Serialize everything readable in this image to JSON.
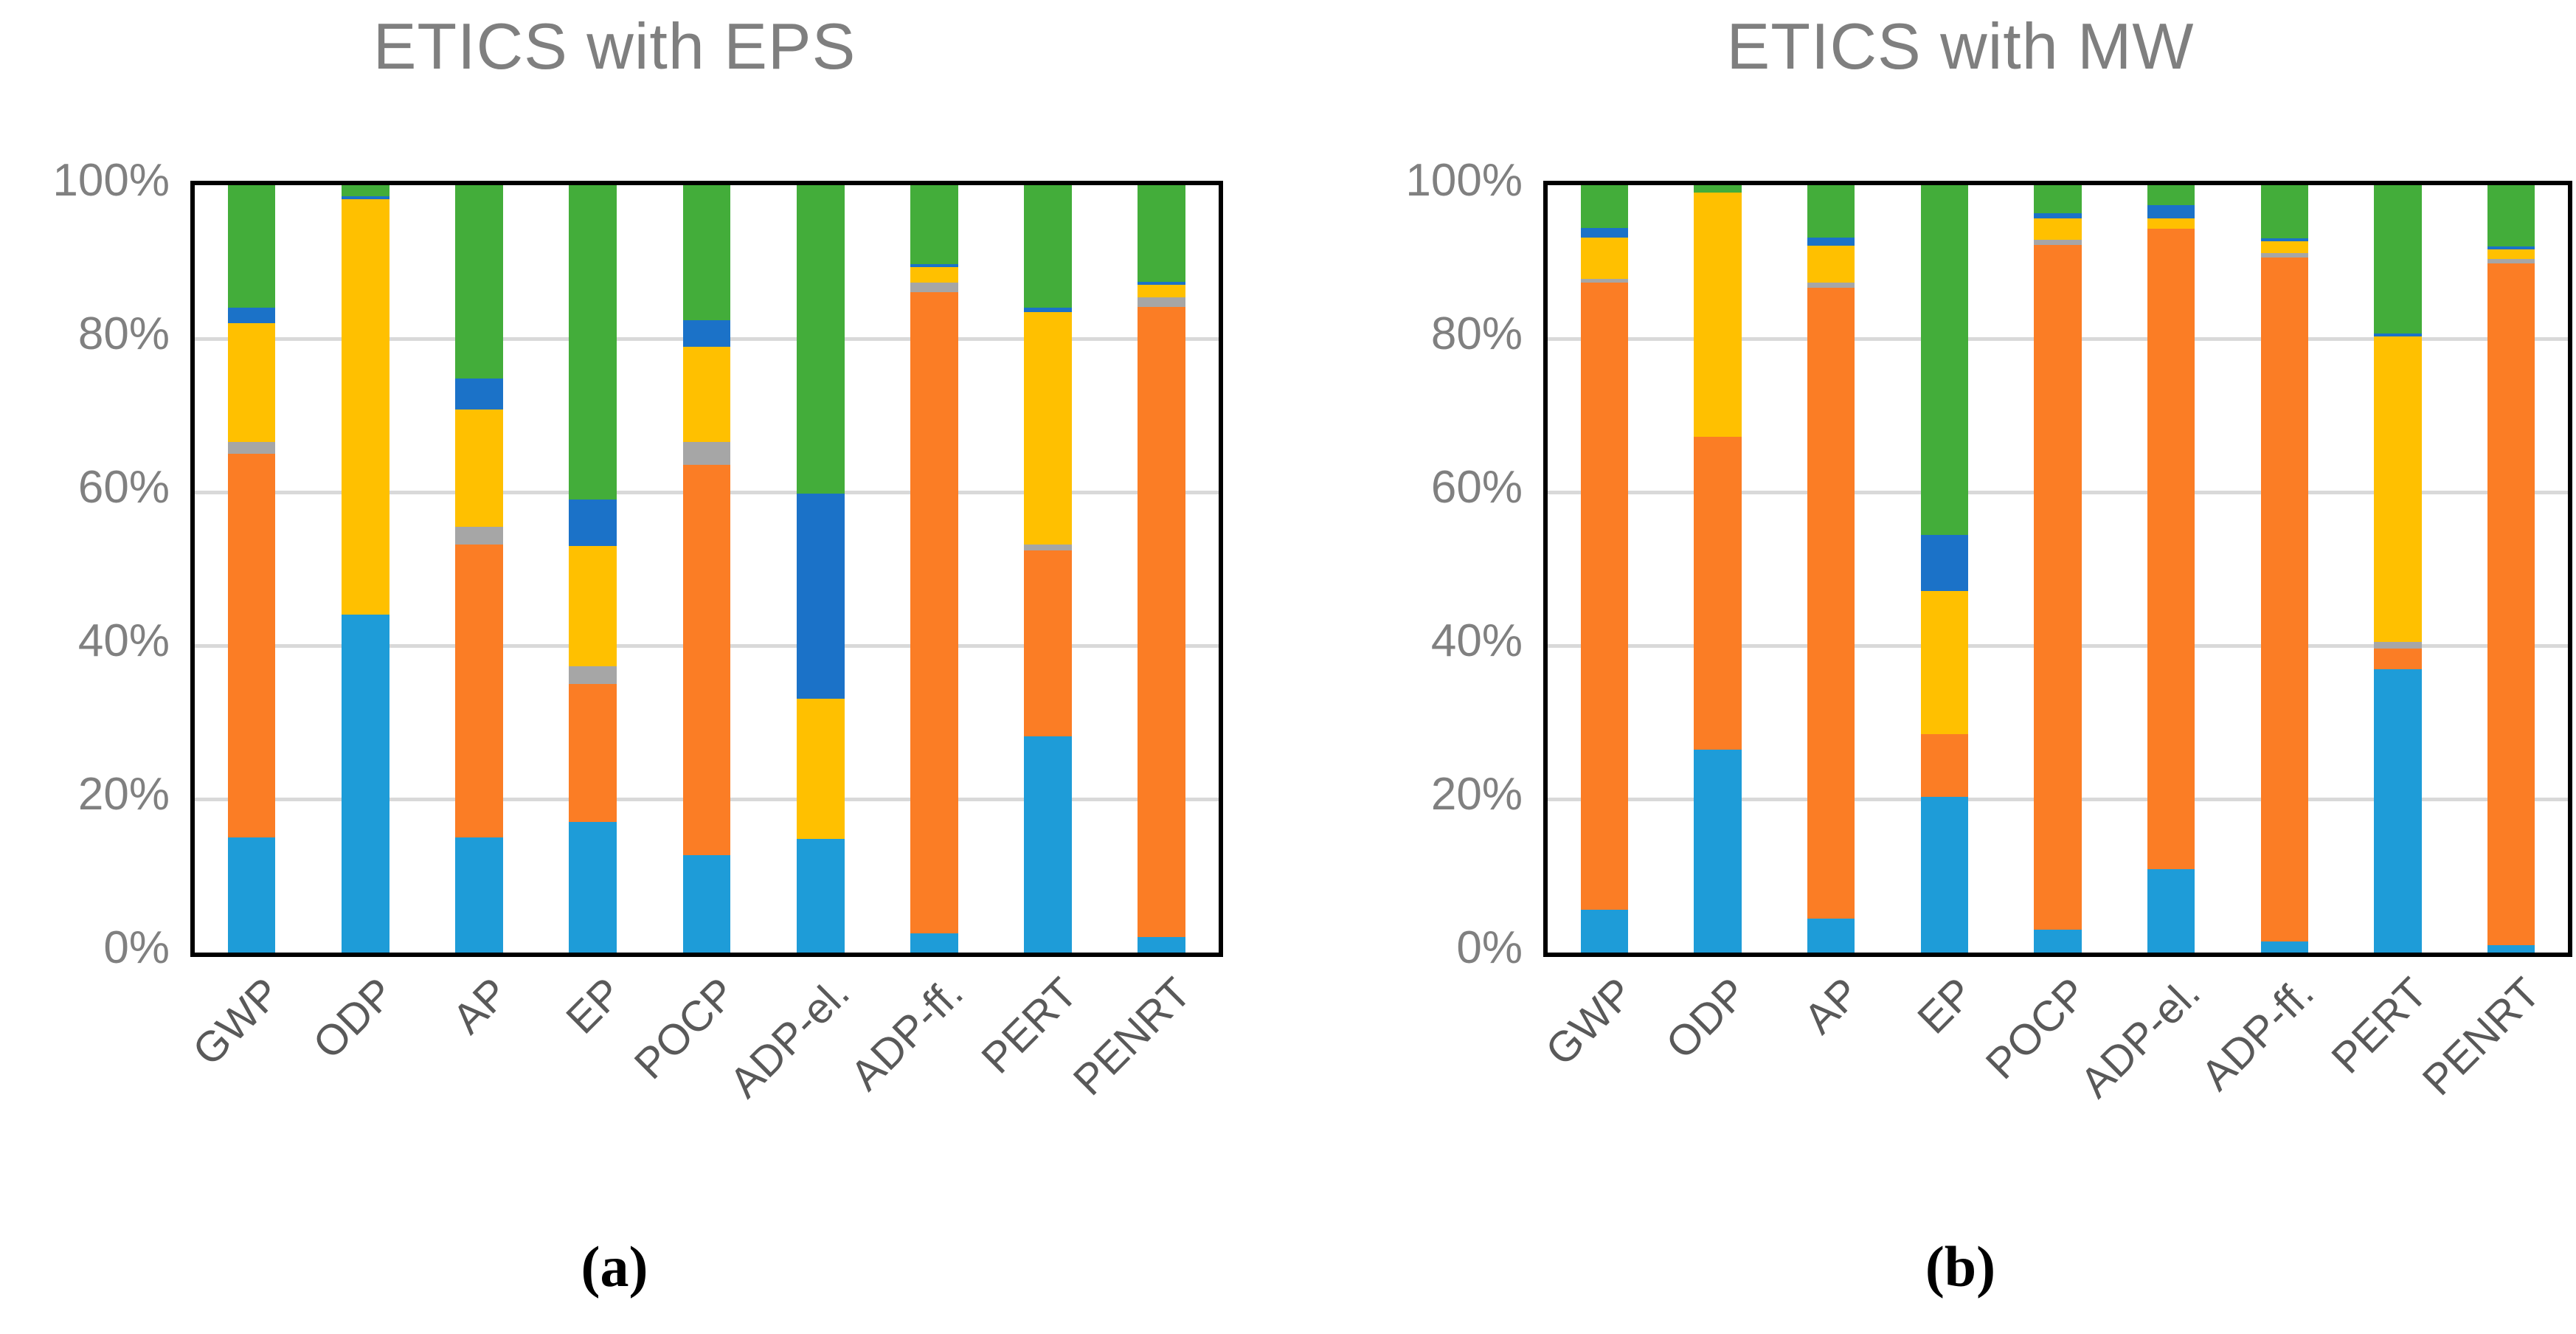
{
  "figure": {
    "background": "#ffffff",
    "captions": {
      "left": "(a)",
      "right": "(b)"
    },
    "palette_note": "stacked series bottom-to-top: light-blue, orange, gray, yellow, dark-blue, green"
  },
  "chart_data": [
    {
      "type": "bar",
      "stacked": true,
      "title": "ETICS with EPS",
      "caption": "(a)",
      "xlabel": "",
      "ylabel": "",
      "ylim": [
        0,
        100
      ],
      "grid": true,
      "gridline_values": [
        20,
        40,
        60,
        80
      ],
      "yticks": [
        {
          "label": "0%",
          "value": 0
        },
        {
          "label": "20%",
          "value": 20
        },
        {
          "label": "40%",
          "value": 40
        },
        {
          "label": "60%",
          "value": 60
        },
        {
          "label": "80%",
          "value": 80
        },
        {
          "label": "100%",
          "value": 100
        }
      ],
      "categories": [
        "GWP",
        "ODP",
        "AP",
        "EP",
        "POCP",
        "ADP-el.",
        "ADP-ff.",
        "PERT",
        "PENRT"
      ],
      "series": [
        {
          "name": "light-blue",
          "color": "#1E9CD8",
          "values": [
            15.0,
            44.0,
            15.0,
            17.0,
            12.7,
            14.8,
            2.5,
            28.2,
            2.0
          ]
        },
        {
          "name": "orange",
          "color": "#FB7D25",
          "values": [
            50.0,
            0.0,
            38.2,
            18.0,
            50.9,
            0.0,
            83.6,
            24.2,
            82.1
          ]
        },
        {
          "name": "gray",
          "color": "#A6A6A6",
          "values": [
            1.5,
            0.0,
            2.3,
            2.3,
            2.9,
            0.0,
            1.2,
            0.8,
            1.3
          ]
        },
        {
          "name": "yellow",
          "color": "#FFC000",
          "values": [
            15.5,
            54.2,
            15.3,
            15.7,
            12.4,
            18.3,
            2.0,
            30.3,
            1.6
          ]
        },
        {
          "name": "dark-blue",
          "color": "#1B72C8",
          "values": [
            2.0,
            0.4,
            4.0,
            6.0,
            3.5,
            26.7,
            0.4,
            0.5,
            0.4
          ]
        },
        {
          "name": "green",
          "color": "#43AD3A",
          "values": [
            16.0,
            1.4,
            25.2,
            41.0,
            17.6,
            40.2,
            10.3,
            16.0,
            12.6
          ]
        }
      ]
    },
    {
      "type": "bar",
      "stacked": true,
      "title": "ETICS with MW",
      "caption": "(b)",
      "xlabel": "",
      "ylabel": "",
      "ylim": [
        0,
        100
      ],
      "grid": true,
      "gridline_values": [
        20,
        40,
        60,
        80
      ],
      "yticks": [
        {
          "label": "0%",
          "value": 0
        },
        {
          "label": "20%",
          "value": 20
        },
        {
          "label": "40%",
          "value": 40
        },
        {
          "label": "60%",
          "value": 60
        },
        {
          "label": "80%",
          "value": 80
        },
        {
          "label": "100%",
          "value": 100
        }
      ],
      "categories": [
        "GWP",
        "ODP",
        "AP",
        "EP",
        "POCP",
        "ADP-el.",
        "ADP-ff.",
        "PERT",
        "PENRT"
      ],
      "series": [
        {
          "name": "light-blue",
          "color": "#1E9CD8",
          "values": [
            5.6,
            26.4,
            4.4,
            20.3,
            3.0,
            10.9,
            1.4,
            36.9,
            1.0
          ]
        },
        {
          "name": "orange",
          "color": "#FB7D25",
          "values": [
            81.7,
            40.8,
            82.2,
            8.2,
            89.2,
            83.4,
            89.2,
            2.7,
            88.8
          ]
        },
        {
          "name": "gray",
          "color": "#A6A6A6",
          "values": [
            0.5,
            0.0,
            0.7,
            0.0,
            0.7,
            0.0,
            0.6,
            0.9,
            0.6
          ]
        },
        {
          "name": "yellow",
          "color": "#FFC000",
          "values": [
            5.4,
            31.8,
            4.8,
            18.6,
            2.8,
            1.4,
            1.5,
            39.8,
            1.2
          ]
        },
        {
          "name": "dark-blue",
          "color": "#1B72C8",
          "values": [
            1.2,
            0.0,
            1.1,
            7.3,
            0.7,
            1.7,
            0.4,
            0.4,
            0.45
          ]
        },
        {
          "name": "green",
          "color": "#43AD3A",
          "values": [
            5.6,
            1.0,
            6.8,
            45.6,
            3.6,
            2.6,
            6.9,
            19.3,
            7.95
          ]
        }
      ]
    }
  ]
}
